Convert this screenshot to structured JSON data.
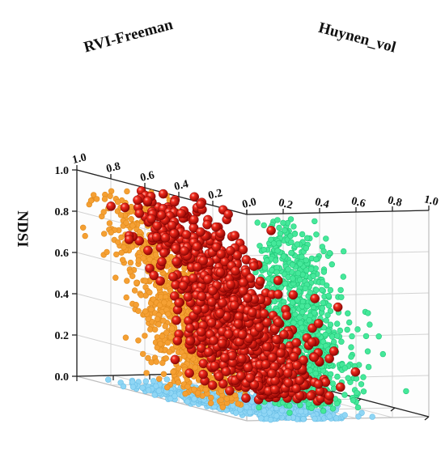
{
  "chart_data": {
    "type": "scatter",
    "projection": "3d",
    "axes": {
      "x": {
        "label": "RVI-Freeman",
        "range": [
          1.0,
          0.0
        ],
        "ticks": [
          "1.0",
          "0.8",
          "0.6",
          "0.4",
          "0.2",
          "0.0"
        ]
      },
      "y": {
        "label": "Huynen_vol",
        "range": [
          0.0,
          1.0
        ],
        "ticks": [
          "0.2",
          "0.4",
          "0.6",
          "0.8",
          "1.0"
        ]
      },
      "z": {
        "label": "NDSI",
        "range": [
          0.0,
          1.0
        ],
        "ticks": [
          "0.0",
          "0.2",
          "0.4",
          "0.6",
          "0.8",
          "1.0"
        ]
      }
    },
    "grid": true,
    "series": [
      {
        "role": "projection-onto-x-z-wall",
        "color": "#f5a033",
        "approx_points": 900
      },
      {
        "role": "projection-onto-y-z-wall",
        "color": "#45e89a",
        "approx_points": 800
      },
      {
        "role": "projection-onto-x-y-floor",
        "color": "#8fd6f5",
        "approx_points": 900
      },
      {
        "role": "3d-points",
        "color": "#e31a1a",
        "approx_points": 1000
      }
    ]
  }
}
